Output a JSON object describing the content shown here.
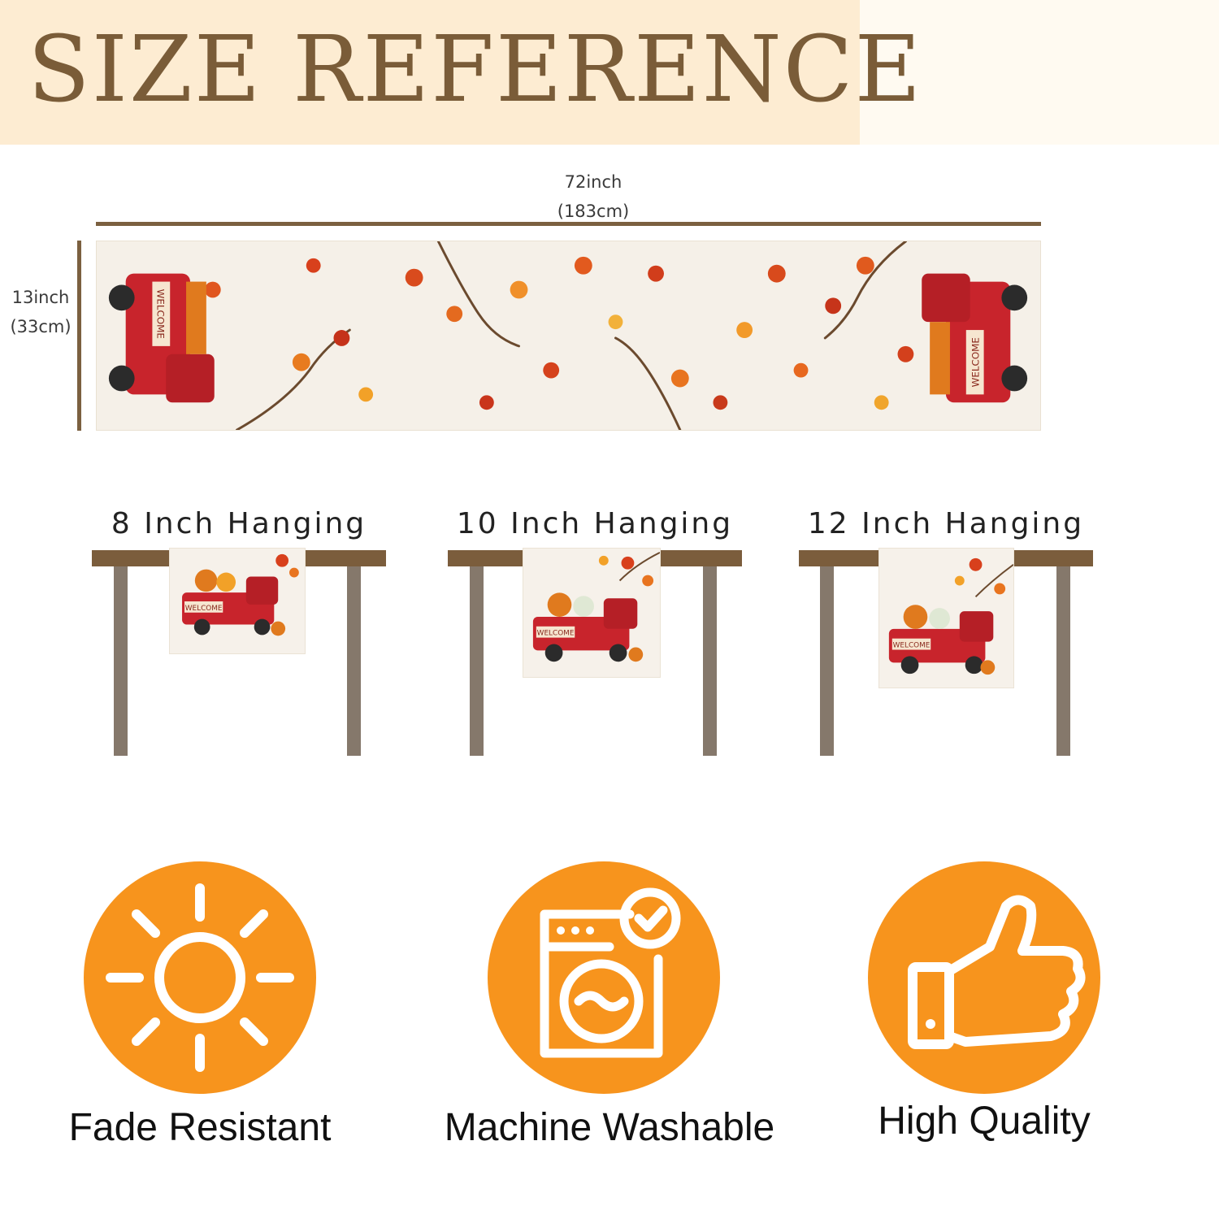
{
  "header": {
    "title": "SIZE REFERENCE"
  },
  "dimensions": {
    "width_inch": "72inch",
    "width_cm": "(183cm)",
    "height_inch": "13inch",
    "height_cm": "(33cm)"
  },
  "runner": {
    "truck_sign": "WELCOME"
  },
  "hanging": [
    {
      "label": "8 Inch Hanging",
      "sign": "WELCOME"
    },
    {
      "label": "10 Inch Hanging",
      "sign": "WELCOME"
    },
    {
      "label": "12 Inch Hanging",
      "sign": "WELCOME"
    }
  ],
  "features": [
    {
      "label": "Fade Resistant",
      "icon": "sun-icon"
    },
    {
      "label": "Machine Washable",
      "icon": "washing-machine-icon"
    },
    {
      "label": "High Quality",
      "icon": "thumbs-up-icon"
    }
  ],
  "colors": {
    "banner": "#fdecd2",
    "title": "#7a5c38",
    "table_wood": "#7b5d3c",
    "table_leg": "#85786b",
    "feature_orange": "#f7941d",
    "truck_red": "#c8242c"
  }
}
